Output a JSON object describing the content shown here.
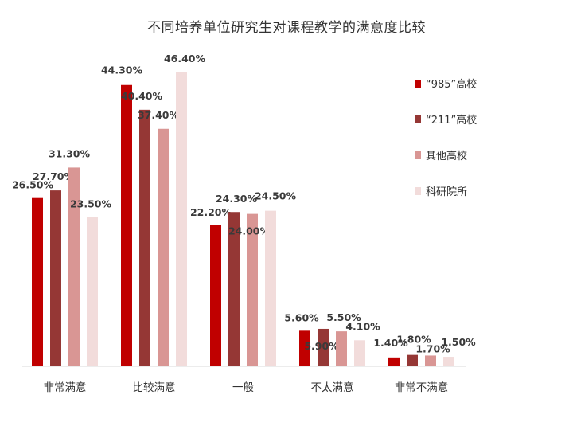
{
  "chart_data": {
    "type": "bar",
    "title": "不同培养单位研究生对课程教学的满意度比较",
    "xlabel": "",
    "ylabel": "",
    "ylim": [
      0,
      50
    ],
    "grid": false,
    "legend_position": "right",
    "value_suffix": "%",
    "categories": [
      "非常满意",
      "比较满意",
      "一般",
      "不太满意",
      "非常不满意"
    ],
    "series": [
      {
        "name": "“985”高校",
        "color": "#c00000",
        "values": [
          26.5,
          44.3,
          22.2,
          5.6,
          1.4
        ]
      },
      {
        "name": "“211”高校",
        "color": "#953735",
        "values": [
          27.7,
          40.4,
          24.3,
          5.9,
          1.8
        ]
      },
      {
        "name": "其他高校",
        "color": "#d99694",
        "values": [
          31.3,
          37.4,
          24.0,
          5.5,
          1.7
        ]
      },
      {
        "name": "科研院所",
        "color": "#f2dcdb",
        "values": [
          23.5,
          46.4,
          24.5,
          4.1,
          1.5
        ]
      }
    ]
  }
}
